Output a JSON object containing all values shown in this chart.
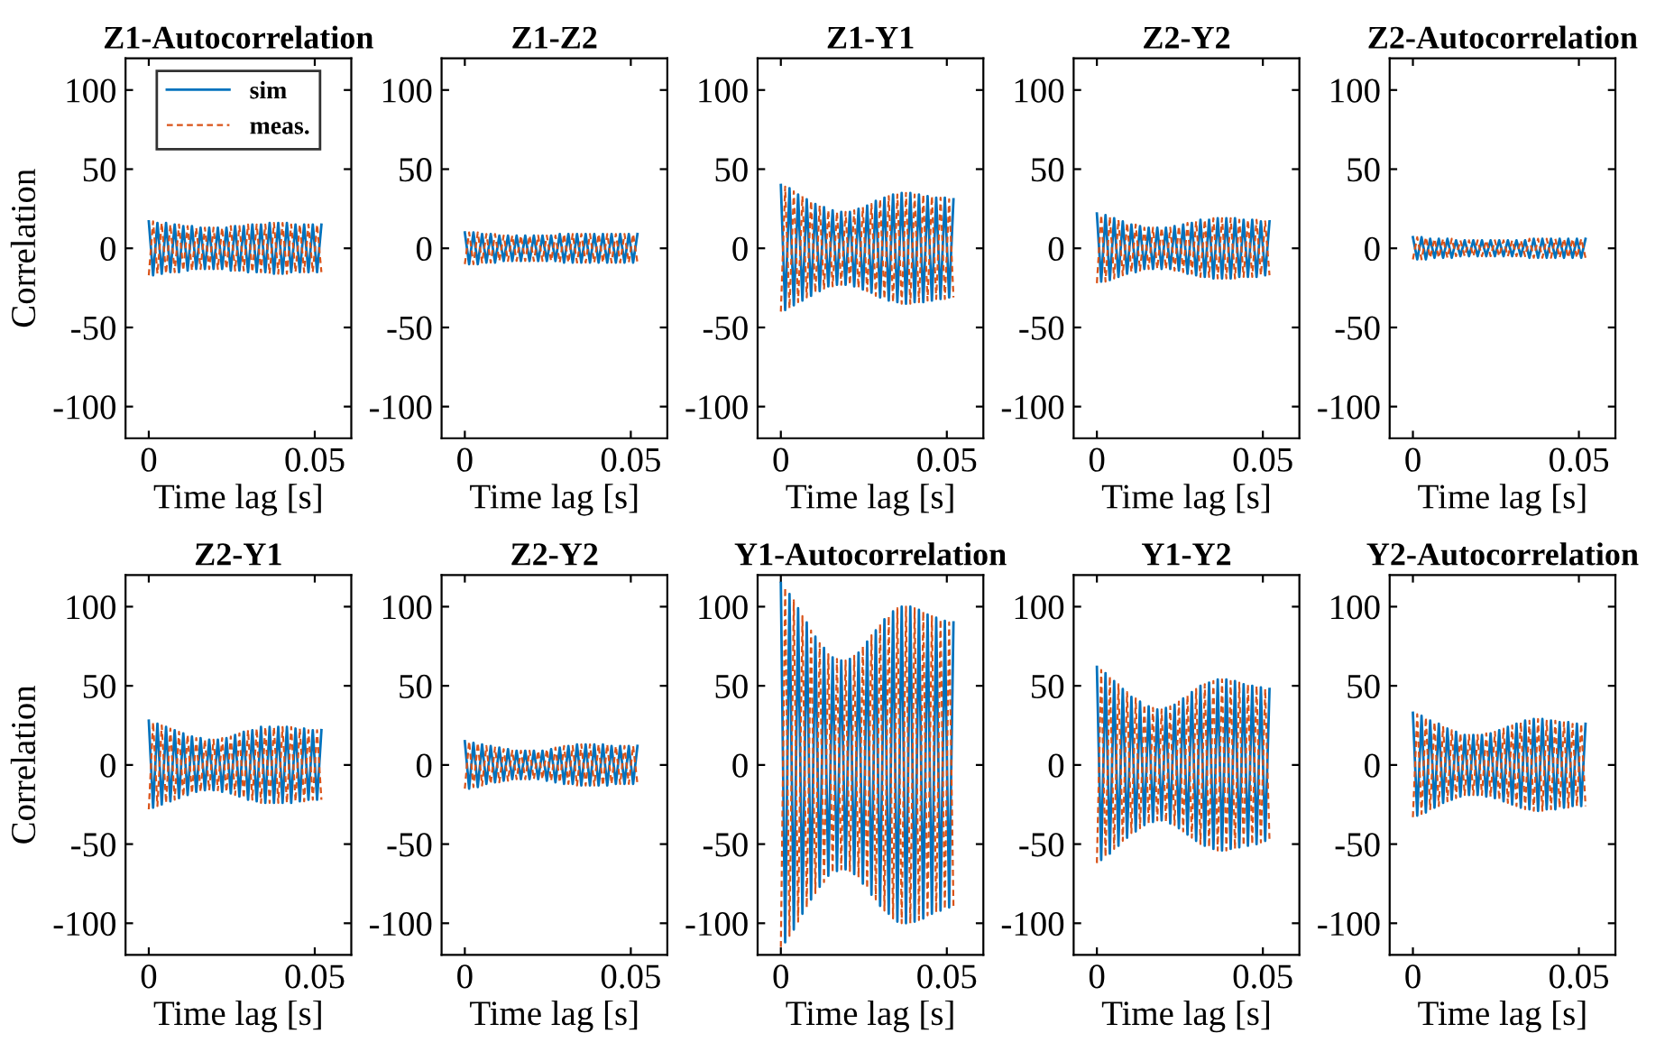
{
  "chart_data": [
    {
      "type": "line",
      "title": "Z1-Autocorrelation",
      "xlabel": "Time lag [s]",
      "ylabel": "Correlation",
      "legend": "top",
      "xlim": [
        -0.007,
        0.061
      ],
      "xticks": [
        0,
        0.05
      ],
      "ylim": [
        -120,
        120
      ],
      "yticks": [
        -100,
        -50,
        0,
        50,
        100
      ],
      "x": [
        0,
        0.0013,
        0.0026,
        0.0039,
        0.0052,
        0.0065,
        0.0078,
        0.0091,
        0.0104,
        0.0117,
        0.013,
        0.0143,
        0.0156,
        0.0169,
        0.0182,
        0.0195,
        0.0208,
        0.0221,
        0.0234,
        0.0247,
        0.026,
        0.0273,
        0.0286,
        0.0299,
        0.0312,
        0.0325,
        0.0338,
        0.0351,
        0.0364,
        0.0377,
        0.039,
        0.0403,
        0.0416,
        0.0429,
        0.0442,
        0.0455,
        0.0468,
        0.0481,
        0.0494,
        0.0507,
        0.052
      ],
      "series": [
        {
          "name": "sim",
          "color": "#0072bd",
          "line_style": "solid",
          "values": [
            17,
            -17,
            16,
            -16,
            16,
            -15,
            15,
            -15,
            14,
            -14,
            14,
            -13,
            13,
            -13,
            13,
            -13,
            13,
            -13,
            13,
            -14,
            14,
            -14,
            14,
            -15,
            15,
            -15,
            15,
            -15,
            16,
            -16,
            16,
            -16,
            16,
            -15,
            15,
            -15,
            15,
            -15,
            15,
            -15,
            15
          ]
        },
        {
          "name": "meas.",
          "color": "#d95319",
          "line_style": "dashed",
          "values": [
            -17,
            17,
            -16,
            16,
            -16,
            15,
            -15,
            15,
            -14,
            14,
            -14,
            13,
            -13,
            13,
            -13,
            13,
            -13,
            13,
            -13,
            14,
            -14,
            14,
            -14,
            15,
            -15,
            15,
            -15,
            15,
            -16,
            16,
            -16,
            16,
            -16,
            15,
            -15,
            15,
            -15,
            15,
            -15,
            15,
            -15
          ]
        }
      ]
    },
    {
      "type": "line",
      "title": "Z1-Z2",
      "xlabel": "Time lag [s]",
      "xlim": [
        -0.007,
        0.061
      ],
      "xticks": [
        0,
        0.05
      ],
      "ylim": [
        -120,
        120
      ],
      "yticks": [
        -100,
        -50,
        0,
        50,
        100
      ],
      "x": [
        0,
        0.0013,
        0.0026,
        0.0039,
        0.0052,
        0.0065,
        0.0078,
        0.0091,
        0.0104,
        0.0117,
        0.013,
        0.0143,
        0.0156,
        0.0169,
        0.0182,
        0.0195,
        0.0208,
        0.0221,
        0.0234,
        0.0247,
        0.026,
        0.0273,
        0.0286,
        0.0299,
        0.0312,
        0.0325,
        0.0338,
        0.0351,
        0.0364,
        0.0377,
        0.039,
        0.0403,
        0.0416,
        0.0429,
        0.0442,
        0.0455,
        0.0468,
        0.0481,
        0.0494,
        0.0507,
        0.052
      ],
      "series": [
        {
          "color": "#0072bd",
          "line_style": "solid",
          "values": [
            10,
            -10,
            10,
            -10,
            9,
            -9,
            9,
            -9,
            8,
            -8,
            8,
            -8,
            8,
            -8,
            8,
            -8,
            8,
            -8,
            8,
            -8,
            8,
            -8,
            9,
            -9,
            9,
            -9,
            9,
            -9,
            9,
            -9,
            9,
            -9,
            9,
            -9,
            9,
            -9,
            9,
            -9,
            9,
            -9,
            9
          ]
        },
        {
          "color": "#d95319",
          "line_style": "dashed",
          "values": [
            -10,
            10,
            -10,
            10,
            -9,
            9,
            -9,
            9,
            -8,
            8,
            -8,
            8,
            -8,
            8,
            -8,
            8,
            -8,
            8,
            -8,
            8,
            -8,
            8,
            -9,
            9,
            -9,
            9,
            -9,
            9,
            -9,
            9,
            -9,
            9,
            -9,
            9,
            -9,
            9,
            -9,
            9,
            -9,
            9,
            -9
          ]
        }
      ]
    },
    {
      "type": "line",
      "title": "Z1-Y1",
      "xlabel": "Time lag [s]",
      "xlim": [
        -0.007,
        0.061
      ],
      "xticks": [
        0,
        0.05
      ],
      "ylim": [
        -120,
        120
      ],
      "yticks": [
        -100,
        -50,
        0,
        50,
        100
      ],
      "x": [
        0,
        0.0013,
        0.0026,
        0.0039,
        0.0052,
        0.0065,
        0.0078,
        0.0091,
        0.0104,
        0.0117,
        0.013,
        0.0143,
        0.0156,
        0.0169,
        0.0182,
        0.0195,
        0.0208,
        0.0221,
        0.0234,
        0.0247,
        0.026,
        0.0273,
        0.0286,
        0.0299,
        0.0312,
        0.0325,
        0.0338,
        0.0351,
        0.0364,
        0.0377,
        0.039,
        0.0403,
        0.0416,
        0.0429,
        0.0442,
        0.0455,
        0.0468,
        0.0481,
        0.0494,
        0.0507,
        0.052
      ],
      "series": [
        {
          "color": "#0072bd",
          "line_style": "solid",
          "values": [
            40,
            -39,
            38,
            -36,
            34,
            -33,
            31,
            -30,
            28,
            -27,
            26,
            -24,
            24,
            -23,
            23,
            -23,
            23,
            -24,
            25,
            -26,
            27,
            -28,
            30,
            -31,
            32,
            -33,
            34,
            -34,
            35,
            -35,
            35,
            -34,
            34,
            -34,
            33,
            -33,
            32,
            -32,
            32,
            -31,
            31
          ]
        },
        {
          "color": "#d95319",
          "line_style": "dashed",
          "values": [
            -40,
            39,
            -38,
            36,
            -34,
            33,
            -31,
            30,
            -28,
            27,
            -26,
            24,
            -24,
            23,
            -23,
            23,
            -23,
            24,
            -25,
            26,
            -27,
            28,
            -30,
            31,
            -32,
            33,
            -34,
            34,
            -35,
            35,
            -35,
            34,
            -34,
            34,
            -33,
            33,
            -32,
            32,
            -32,
            31,
            -31
          ]
        }
      ]
    },
    {
      "type": "line",
      "title": "Z2-Y2",
      "xlabel": "Time lag [s]",
      "xlim": [
        -0.007,
        0.061
      ],
      "xticks": [
        0,
        0.05
      ],
      "ylim": [
        -120,
        120
      ],
      "yticks": [
        -100,
        -50,
        0,
        50,
        100
      ],
      "x": [
        0,
        0.0013,
        0.0026,
        0.0039,
        0.0052,
        0.0065,
        0.0078,
        0.0091,
        0.0104,
        0.0117,
        0.013,
        0.0143,
        0.0156,
        0.0169,
        0.0182,
        0.0195,
        0.0208,
        0.0221,
        0.0234,
        0.0247,
        0.026,
        0.0273,
        0.0286,
        0.0299,
        0.0312,
        0.0325,
        0.0338,
        0.0351,
        0.0364,
        0.0377,
        0.039,
        0.0403,
        0.0416,
        0.0429,
        0.0442,
        0.0455,
        0.0468,
        0.0481,
        0.0494,
        0.0507,
        0.052
      ],
      "series": [
        {
          "color": "#0072bd",
          "line_style": "solid",
          "values": [
            22,
            -21,
            21,
            -20,
            19,
            -18,
            17,
            -16,
            15,
            -15,
            14,
            -13,
            13,
            -13,
            13,
            -13,
            13,
            -13,
            14,
            -14,
            15,
            -16,
            16,
            -17,
            18,
            -18,
            18,
            -19,
            19,
            -19,
            19,
            -19,
            19,
            -18,
            18,
            -18,
            18,
            -18,
            17,
            -17,
            17
          ]
        },
        {
          "color": "#d95319",
          "line_style": "dashed",
          "values": [
            -22,
            21,
            -21,
            20,
            -19,
            18,
            -17,
            16,
            -15,
            15,
            -14,
            13,
            -13,
            13,
            -13,
            13,
            -13,
            13,
            -14,
            14,
            -15,
            16,
            -16,
            17,
            -18,
            18,
            -18,
            19,
            -19,
            19,
            -19,
            19,
            -19,
            18,
            -18,
            18,
            -18,
            18,
            -17,
            17,
            -17
          ]
        }
      ]
    },
    {
      "type": "line",
      "title": "Z2-Autocorrelation",
      "xlabel": "Time lag [s]",
      "xlim": [
        -0.007,
        0.061
      ],
      "xticks": [
        0,
        0.05
      ],
      "ylim": [
        -120,
        120
      ],
      "yticks": [
        -100,
        -50,
        0,
        50,
        100
      ],
      "x": [
        0,
        0.0013,
        0.0026,
        0.0039,
        0.0052,
        0.0065,
        0.0078,
        0.0091,
        0.0104,
        0.0117,
        0.013,
        0.0143,
        0.0156,
        0.0169,
        0.0182,
        0.0195,
        0.0208,
        0.0221,
        0.0234,
        0.0247,
        0.026,
        0.0273,
        0.0286,
        0.0299,
        0.0312,
        0.0325,
        0.0338,
        0.0351,
        0.0364,
        0.0377,
        0.039,
        0.0403,
        0.0416,
        0.0429,
        0.0442,
        0.0455,
        0.0468,
        0.0481,
        0.0494,
        0.0507,
        0.052
      ],
      "series": [
        {
          "color": "#0072bd",
          "line_style": "solid",
          "values": [
            7,
            -7,
            7,
            -7,
            6,
            -6,
            6,
            -6,
            6,
            -6,
            5,
            -5,
            5,
            -5,
            5,
            -5,
            5,
            -5,
            5,
            -5,
            5,
            -5,
            5,
            -5,
            5,
            -5,
            5,
            -6,
            6,
            -6,
            6,
            -6,
            6,
            -6,
            6,
            -6,
            6,
            -6,
            6,
            -6,
            6
          ]
        },
        {
          "color": "#d95319",
          "line_style": "dashed",
          "values": [
            -7,
            7,
            -7,
            7,
            -6,
            6,
            -6,
            6,
            -6,
            6,
            -5,
            5,
            -5,
            5,
            -5,
            5,
            -5,
            5,
            -5,
            5,
            -5,
            5,
            -5,
            5,
            -5,
            5,
            -5,
            6,
            -6,
            6,
            -6,
            6,
            -6,
            6,
            -6,
            6,
            -6,
            6,
            -6,
            6,
            -6
          ]
        }
      ]
    },
    {
      "type": "line",
      "title": "Z2-Y1",
      "xlabel": "Time lag [s]",
      "ylabel": "Correlation",
      "xlim": [
        -0.007,
        0.061
      ],
      "xticks": [
        0,
        0.05
      ],
      "ylim": [
        -120,
        120
      ],
      "yticks": [
        -100,
        -50,
        0,
        50,
        100
      ],
      "x": [
        0,
        0.0013,
        0.0026,
        0.0039,
        0.0052,
        0.0065,
        0.0078,
        0.0091,
        0.0104,
        0.0117,
        0.013,
        0.0143,
        0.0156,
        0.0169,
        0.0182,
        0.0195,
        0.0208,
        0.0221,
        0.0234,
        0.0247,
        0.026,
        0.0273,
        0.0286,
        0.0299,
        0.0312,
        0.0325,
        0.0338,
        0.0351,
        0.0364,
        0.0377,
        0.039,
        0.0403,
        0.0416,
        0.0429,
        0.0442,
        0.0455,
        0.0468,
        0.0481,
        0.0494,
        0.0507,
        0.052
      ],
      "series": [
        {
          "color": "#0072bd",
          "line_style": "solid",
          "values": [
            28,
            -27,
            26,
            -25,
            24,
            -23,
            22,
            -21,
            20,
            -19,
            18,
            -17,
            17,
            -16,
            16,
            -16,
            16,
            -17,
            17,
            -18,
            19,
            -20,
            21,
            -22,
            22,
            -23,
            24,
            -24,
            24,
            -24,
            24,
            -24,
            24,
            -24,
            23,
            -23,
            23,
            -22,
            22,
            -22,
            22
          ]
        },
        {
          "color": "#d95319",
          "line_style": "dashed",
          "values": [
            -28,
            27,
            -26,
            25,
            -24,
            23,
            -22,
            21,
            -20,
            19,
            -18,
            17,
            -17,
            16,
            -16,
            16,
            -16,
            17,
            -17,
            18,
            -19,
            20,
            -21,
            22,
            -22,
            23,
            -24,
            24,
            -24,
            24,
            -24,
            24,
            -24,
            24,
            -23,
            23,
            -23,
            22,
            -22,
            22,
            -22
          ]
        }
      ]
    },
    {
      "type": "line",
      "title": "Z2-Y2",
      "xlabel": "Time lag [s]",
      "xlim": [
        -0.007,
        0.061
      ],
      "xticks": [
        0,
        0.05
      ],
      "ylim": [
        -120,
        120
      ],
      "yticks": [
        -100,
        -50,
        0,
        50,
        100
      ],
      "x": [
        0,
        0.0013,
        0.0026,
        0.0039,
        0.0052,
        0.0065,
        0.0078,
        0.0091,
        0.0104,
        0.0117,
        0.013,
        0.0143,
        0.0156,
        0.0169,
        0.0182,
        0.0195,
        0.0208,
        0.0221,
        0.0234,
        0.0247,
        0.026,
        0.0273,
        0.0286,
        0.0299,
        0.0312,
        0.0325,
        0.0338,
        0.0351,
        0.0364,
        0.0377,
        0.039,
        0.0403,
        0.0416,
        0.0429,
        0.0442,
        0.0455,
        0.0468,
        0.0481,
        0.0494,
        0.0507,
        0.052
      ],
      "series": [
        {
          "color": "#0072bd",
          "line_style": "solid",
          "values": [
            15,
            -15,
            14,
            -14,
            13,
            -12,
            12,
            -11,
            11,
            -10,
            10,
            -9,
            9,
            -9,
            9,
            -9,
            9,
            -9,
            9,
            -10,
            10,
            -11,
            11,
            -12,
            12,
            -12,
            13,
            -13,
            13,
            -13,
            13,
            -13,
            13,
            -13,
            12,
            -12,
            12,
            -12,
            12,
            -12,
            12
          ]
        },
        {
          "color": "#d95319",
          "line_style": "dashed",
          "values": [
            -15,
            15,
            -14,
            14,
            -13,
            12,
            -12,
            11,
            -11,
            10,
            -10,
            9,
            -9,
            9,
            -9,
            9,
            -9,
            9,
            -9,
            10,
            -10,
            11,
            -11,
            12,
            -12,
            12,
            -13,
            13,
            -13,
            13,
            -13,
            13,
            -13,
            13,
            -12,
            12,
            -12,
            12,
            -12,
            12,
            -12
          ]
        }
      ]
    },
    {
      "type": "line",
      "title": "Y1-Autocorrelation",
      "xlabel": "Time lag [s]",
      "xlim": [
        -0.007,
        0.061
      ],
      "xticks": [
        0,
        0.05
      ],
      "ylim": [
        -120,
        120
      ],
      "yticks": [
        -100,
        -50,
        0,
        50,
        100
      ],
      "x": [
        0,
        0.0013,
        0.0026,
        0.0039,
        0.0052,
        0.0065,
        0.0078,
        0.0091,
        0.0104,
        0.0117,
        0.013,
        0.0143,
        0.0156,
        0.0169,
        0.0182,
        0.0195,
        0.0208,
        0.0221,
        0.0234,
        0.0247,
        0.026,
        0.0273,
        0.0286,
        0.0299,
        0.0312,
        0.0325,
        0.0338,
        0.0351,
        0.0364,
        0.0377,
        0.039,
        0.0403,
        0.0416,
        0.0429,
        0.0442,
        0.0455,
        0.0468,
        0.0481,
        0.0494,
        0.0507,
        0.052
      ],
      "series": [
        {
          "color": "#0072bd",
          "line_style": "solid",
          "values": [
            115,
            -112,
            108,
            -104,
            99,
            -94,
            90,
            -85,
            81,
            -77,
            74,
            -70,
            68,
            -67,
            66,
            -66,
            67,
            -69,
            71,
            -75,
            78,
            -82,
            85,
            -89,
            92,
            -94,
            97,
            -99,
            100,
            -100,
            100,
            -99,
            98,
            -97,
            95,
            -94,
            93,
            -92,
            91,
            -90,
            90
          ]
        },
        {
          "color": "#d95319",
          "line_style": "dashed",
          "values": [
            -115,
            112,
            -108,
            104,
            -99,
            94,
            -90,
            85,
            -81,
            77,
            -74,
            70,
            -68,
            67,
            -66,
            66,
            -67,
            69,
            -71,
            75,
            -78,
            82,
            -85,
            89,
            -92,
            94,
            -97,
            99,
            -100,
            100,
            -100,
            99,
            -98,
            97,
            -95,
            94,
            -93,
            92,
            -91,
            90,
            -90
          ]
        }
      ]
    },
    {
      "type": "line",
      "title": "Y1-Y2",
      "xlabel": "Time lag [s]",
      "xlim": [
        -0.007,
        0.061
      ],
      "xticks": [
        0,
        0.05
      ],
      "ylim": [
        -120,
        120
      ],
      "yticks": [
        -100,
        -50,
        0,
        50,
        100
      ],
      "x": [
        0,
        0.0013,
        0.0026,
        0.0039,
        0.0052,
        0.0065,
        0.0078,
        0.0091,
        0.0104,
        0.0117,
        0.013,
        0.0143,
        0.0156,
        0.0169,
        0.0182,
        0.0195,
        0.0208,
        0.0221,
        0.0234,
        0.0247,
        0.026,
        0.0273,
        0.0286,
        0.0299,
        0.0312,
        0.0325,
        0.0338,
        0.0351,
        0.0364,
        0.0377,
        0.039,
        0.0403,
        0.0416,
        0.0429,
        0.0442,
        0.0455,
        0.0468,
        0.0481,
        0.0494,
        0.0507,
        0.052
      ],
      "series": [
        {
          "color": "#0072bd",
          "line_style": "solid",
          "values": [
            62,
            -60,
            58,
            -56,
            53,
            -51,
            48,
            -46,
            43,
            -42,
            40,
            -38,
            37,
            -36,
            35,
            -35,
            36,
            -37,
            38,
            -40,
            42,
            -44,
            46,
            -48,
            50,
            -51,
            52,
            -53,
            54,
            -54,
            54,
            -53,
            53,
            -52,
            51,
            -51,
            50,
            -50,
            49,
            -48,
            48
          ]
        },
        {
          "color": "#d95319",
          "line_style": "dashed",
          "values": [
            -62,
            60,
            -58,
            56,
            -53,
            51,
            -48,
            46,
            -43,
            42,
            -40,
            38,
            -37,
            36,
            -35,
            35,
            -36,
            37,
            -38,
            40,
            -42,
            44,
            -46,
            48,
            -50,
            51,
            -52,
            53,
            -54,
            54,
            -54,
            53,
            -53,
            52,
            -51,
            51,
            -50,
            50,
            -49,
            48,
            -48
          ]
        }
      ]
    },
    {
      "type": "line",
      "title": "Y2-Autocorrelation",
      "xlabel": "Time lag [s]",
      "xlim": [
        -0.007,
        0.061
      ],
      "xticks": [
        0,
        0.05
      ],
      "ylim": [
        -120,
        120
      ],
      "yticks": [
        -100,
        -50,
        0,
        50,
        100
      ],
      "x": [
        0,
        0.0013,
        0.0026,
        0.0039,
        0.0052,
        0.0065,
        0.0078,
        0.0091,
        0.0104,
        0.0117,
        0.013,
        0.0143,
        0.0156,
        0.0169,
        0.0182,
        0.0195,
        0.0208,
        0.0221,
        0.0234,
        0.0247,
        0.026,
        0.0273,
        0.0286,
        0.0299,
        0.0312,
        0.0325,
        0.0338,
        0.0351,
        0.0364,
        0.0377,
        0.039,
        0.0403,
        0.0416,
        0.0429,
        0.0442,
        0.0455,
        0.0468,
        0.0481,
        0.0494,
        0.0507,
        0.052
      ],
      "series": [
        {
          "color": "#0072bd",
          "line_style": "solid",
          "values": [
            33,
            -32,
            31,
            -30,
            28,
            -27,
            26,
            -24,
            23,
            -22,
            21,
            -20,
            19,
            -19,
            19,
            -19,
            19,
            -20,
            20,
            -21,
            22,
            -23,
            24,
            -25,
            26,
            -27,
            28,
            -28,
            29,
            -29,
            29,
            -28,
            28,
            -28,
            27,
            -27,
            27,
            -26,
            26,
            -26,
            26
          ]
        },
        {
          "color": "#d95319",
          "line_style": "dashed",
          "values": [
            -33,
            32,
            -31,
            30,
            -28,
            27,
            -26,
            24,
            -23,
            22,
            -21,
            20,
            -19,
            19,
            -19,
            19,
            -19,
            20,
            -20,
            21,
            -22,
            23,
            -24,
            25,
            -26,
            27,
            -28,
            28,
            -29,
            29,
            -29,
            28,
            -28,
            28,
            -27,
            27,
            -27,
            26,
            -26,
            26,
            -26
          ]
        }
      ]
    }
  ]
}
